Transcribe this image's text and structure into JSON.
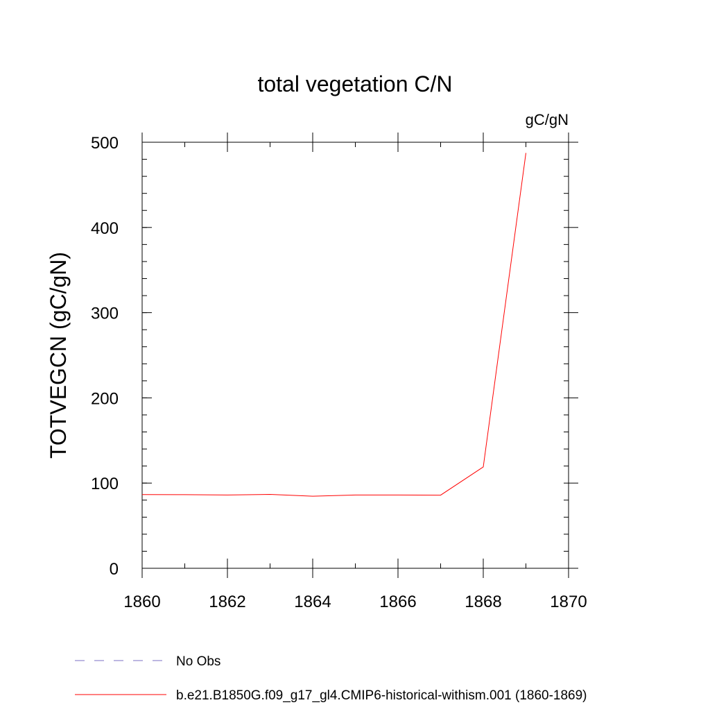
{
  "chart_data": {
    "type": "line",
    "title": "total vegetation C/N",
    "units_label": "gC/gN",
    "xlabel": "",
    "ylabel": "TOTVEGCN  (gC/gN)",
    "xlim": [
      1860,
      1870
    ],
    "ylim": [
      0,
      500
    ],
    "x_ticks": [
      1860,
      1862,
      1864,
      1866,
      1868,
      1870
    ],
    "y_ticks": [
      0,
      100,
      200,
      300,
      400,
      500
    ],
    "x_minor_step": 1,
    "y_minor_step": 20,
    "grid": false,
    "series": [
      {
        "name": "b.e21.B1850G.f09_g17_gl4.CMIP6-historical-withism.001 (1860-1869)",
        "color": "#ff0000",
        "style": "solid",
        "x": [
          1860,
          1861,
          1862,
          1863,
          1864,
          1865,
          1866,
          1867,
          1868,
          1869
        ],
        "y": [
          86.5,
          86.4,
          86.0,
          86.7,
          84.6,
          86.0,
          86.0,
          85.8,
          119.0,
          487.5
        ]
      }
    ],
    "legend": {
      "placement": "bottom-left",
      "entries": [
        {
          "label": "No Obs",
          "color": "#7b6fc4",
          "style": "dashed"
        },
        {
          "label": "b.e21.B1850G.f09_g17_gl4.CMIP6-historical-withism.001 (1860-1869)",
          "color": "#ff0000",
          "style": "solid"
        }
      ]
    }
  }
}
